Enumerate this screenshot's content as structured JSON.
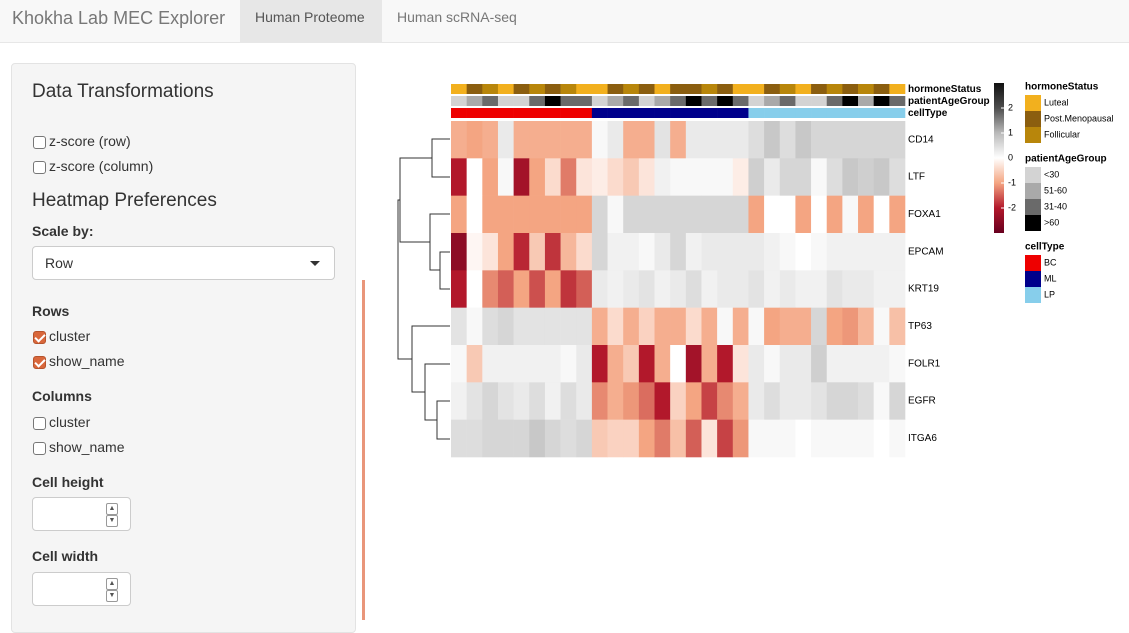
{
  "navbar": {
    "brand": "Khokha Lab MEC Explorer",
    "tabs": [
      "Human Proteome",
      "Human scRNA-seq"
    ]
  },
  "sidebar": {
    "title": "Data Transformations",
    "zscore": [
      {
        "label": "z-score (row)",
        "checked": false
      },
      {
        "label": "z-score (column)",
        "checked": false
      }
    ],
    "prefs_title": "Heatmap Preferences",
    "scale_by": {
      "label": "Scale by:",
      "value": "Row"
    },
    "rows": {
      "label": "Rows",
      "options": [
        {
          "label": "cluster",
          "checked": true
        },
        {
          "label": "show_name",
          "checked": true
        }
      ]
    },
    "columns": {
      "label": "Columns",
      "options": [
        {
          "label": "cluster",
          "checked": false
        },
        {
          "label": "show_name",
          "checked": false
        }
      ]
    },
    "cell_height": {
      "label": "Cell height"
    },
    "cell_width": {
      "label": "Cell width"
    }
  },
  "heatmap": {
    "rows": [
      "CD14",
      "LTF",
      "FOXA1",
      "EPCAM",
      "KRT19",
      "TP63",
      "FOLR1",
      "EGFR",
      "ITGA6"
    ],
    "values": [
      [
        -0.9,
        -1,
        -0.9,
        0.3,
        -0.9,
        -0.9,
        -0.9,
        -0.9,
        -0.9,
        0.1,
        0.3,
        -0.9,
        -0.9,
        0.4,
        -0.9,
        0.3,
        0.3,
        0.3,
        0.3,
        0.5,
        0.8,
        0.5,
        0.8,
        0.6,
        0.6,
        0.6,
        0.6,
        0.6,
        0.6
      ],
      [
        -2,
        0,
        -1,
        0.1,
        -2.2,
        -1,
        -0.4,
        -1.3,
        -0.3,
        -0.2,
        -0.4,
        -0.6,
        -0.3,
        0.2,
        0.1,
        0.1,
        0.1,
        0.1,
        -0.2,
        0.7,
        0.3,
        0.6,
        0.6,
        0.1,
        0.5,
        0.8,
        0.7,
        0.8,
        0.5
      ],
      [
        -1,
        0,
        -1,
        -1,
        -1,
        -1,
        -1,
        -1,
        -1,
        0.6,
        0.1,
        0.6,
        0.6,
        0.6,
        0.6,
        0.6,
        0.6,
        0.6,
        0.6,
        -1,
        0,
        0,
        -1,
        0,
        -1,
        0.1,
        -1,
        0,
        -1
      ],
      [
        -2.5,
        -0.1,
        -0.3,
        -1,
        -1.9,
        -0.6,
        -1.8,
        -0.8,
        -0.4,
        0.6,
        0.2,
        0.2,
        0.1,
        0.3,
        0.6,
        0.2,
        0.3,
        0.3,
        0.3,
        0.3,
        0.2,
        0.1,
        0,
        0.1,
        0.2,
        0.2,
        0.2,
        0.2,
        0.2
      ],
      [
        -2,
        0,
        -1.2,
        -1.5,
        -1,
        -1.6,
        -1,
        -1.8,
        -1.5,
        0.3,
        0.2,
        0.3,
        0.4,
        0.2,
        0.3,
        0.5,
        0.2,
        0.3,
        0.3,
        0.4,
        0.2,
        0.3,
        0.2,
        0.2,
        0.4,
        0.3,
        0.3,
        0.2,
        0.2
      ],
      [
        0.4,
        0.1,
        0.5,
        0.6,
        0.4,
        0.4,
        0.4,
        0.4,
        0.4,
        -0.9,
        -0.4,
        -0.9,
        -0.5,
        -0.9,
        -0.9,
        -0.4,
        -0.9,
        0.1,
        -0.9,
        0.1,
        -1,
        -0.9,
        -0.9,
        0.6,
        -1,
        -1.1,
        -0.8,
        0.1,
        -0.7
      ],
      [
        0.1,
        -0.6,
        0.2,
        0.2,
        0.2,
        0.2,
        0.2,
        0.1,
        0.3,
        -2,
        -0.9,
        -0.6,
        -2,
        -0.9,
        0,
        -2.2,
        -0.9,
        -2,
        -0.3,
        0.3,
        0.1,
        0.3,
        0.3,
        0.7,
        0.2,
        0.2,
        0.2,
        0.2,
        0.1
      ],
      [
        0.2,
        0.4,
        0.6,
        0.4,
        0.3,
        0.5,
        0.2,
        0.5,
        0.3,
        -1.2,
        -0.9,
        -1.1,
        -1.4,
        -2,
        -0.5,
        -1,
        -1.7,
        -1.2,
        -0.9,
        0.3,
        0.5,
        0.3,
        0.3,
        0.4,
        0.6,
        0.6,
        0.5,
        0.1,
        0.6
      ],
      [
        0.5,
        0.5,
        0.6,
        0.6,
        0.6,
        0.8,
        0.6,
        0.5,
        0.6,
        -0.6,
        -0.5,
        -0.5,
        -1,
        -1.3,
        -0.7,
        -1.5,
        -0.3,
        -1.7,
        -1.1,
        0.1,
        0.1,
        0.1,
        0,
        0.1,
        0.1,
        0.1,
        0.1,
        0,
        0.1
      ]
    ],
    "annotations": [
      {
        "name": "hormoneStatus",
        "levels": [
          {
            "label": "Luteal",
            "color": "#f2b01e"
          },
          {
            "label": "Post.Menopausal",
            "color": "#8b5e0f"
          },
          {
            "label": "Follicular",
            "color": "#b8860b"
          }
        ],
        "columns": [
          "Luteal",
          "Post.Menopausal",
          "Follicular",
          "Luteal",
          "Post.Menopausal",
          "Follicular",
          "Post.Menopausal",
          "Follicular",
          "Luteal",
          "Luteal",
          "Post.Menopausal",
          "Follicular",
          "Post.Menopausal",
          "Luteal",
          "Post.Menopausal",
          "Post.Menopausal",
          "Follicular",
          "Post.Menopausal",
          "Luteal",
          "Luteal",
          "Post.Menopausal",
          "Follicular",
          "Luteal",
          "Post.Menopausal",
          "Follicular",
          "Post.Menopausal",
          "Follicular",
          "Post.Menopausal",
          "Luteal"
        ]
      },
      {
        "name": "patientAgeGroup",
        "levels": [
          {
            "label": "<30",
            "color": "#d3d3d3"
          },
          {
            "label": "51-60",
            "color": "#a9a9a9"
          },
          {
            "label": "31-40",
            "color": "#6a6a6a"
          },
          {
            "label": ">60",
            "color": "#000000"
          }
        ],
        "columns": [
          "<30",
          "51-60",
          "31-40",
          "<30",
          "<30",
          "31-40",
          ">60",
          "31-40",
          "31-40",
          "<30",
          "51-60",
          "31-40",
          "<30",
          "51-60",
          "31-40",
          ">60",
          "31-40",
          ">60",
          "31-40",
          "<30",
          "51-60",
          "31-40",
          "<30",
          "<30",
          "31-40",
          ">60",
          "51-60",
          ">60",
          "31-40"
        ]
      },
      {
        "name": "cellType",
        "levels": [
          {
            "label": "BC",
            "color": "#ee0000"
          },
          {
            "label": "ML",
            "color": "#00008b"
          },
          {
            "label": "LP",
            "color": "#87ceeb"
          }
        ],
        "columns": [
          "BC",
          "BC",
          "BC",
          "BC",
          "BC",
          "BC",
          "BC",
          "BC",
          "BC",
          "ML",
          "ML",
          "ML",
          "ML",
          "ML",
          "ML",
          "ML",
          "ML",
          "ML",
          "ML",
          "LP",
          "LP",
          "LP",
          "LP",
          "LP",
          "LP",
          "LP",
          "LP",
          "LP",
          "LP"
        ]
      }
    ],
    "legend": {
      "range": [
        -3,
        3
      ],
      "colors": [
        "#67001f",
        "#b2182b",
        "#f4a582",
        "#ffffff",
        "#bababa",
        "#4d4d4d",
        "#111111"
      ],
      "ticks": [
        2,
        1,
        0,
        -1,
        -2
      ]
    }
  }
}
